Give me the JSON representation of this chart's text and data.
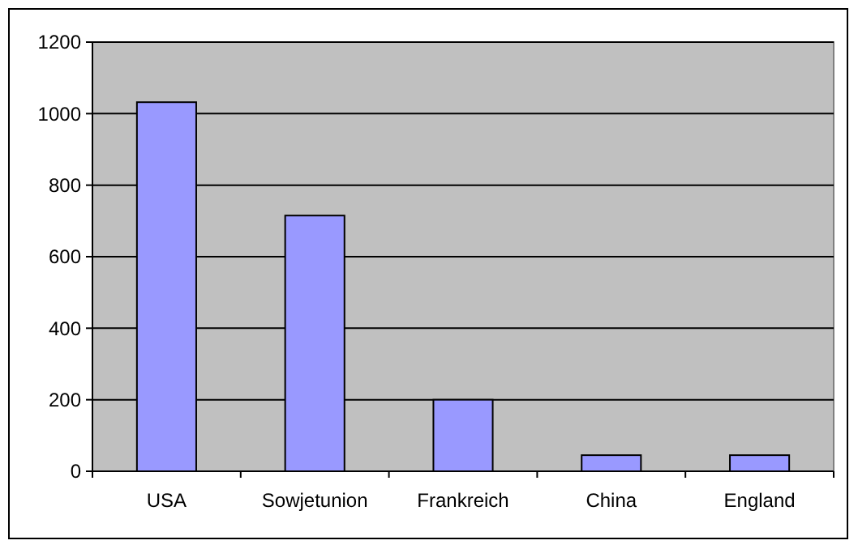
{
  "chart_data": {
    "type": "bar",
    "categories": [
      "USA",
      "Sowjetunion",
      "Frankreich",
      "China",
      "England"
    ],
    "values": [
      1032,
      715,
      200,
      45,
      45
    ],
    "color": "#9999ff",
    "ylim": [
      0,
      1200
    ],
    "yticks": [
      0,
      200,
      400,
      600,
      800,
      1000,
      1200
    ],
    "grid": "y"
  }
}
